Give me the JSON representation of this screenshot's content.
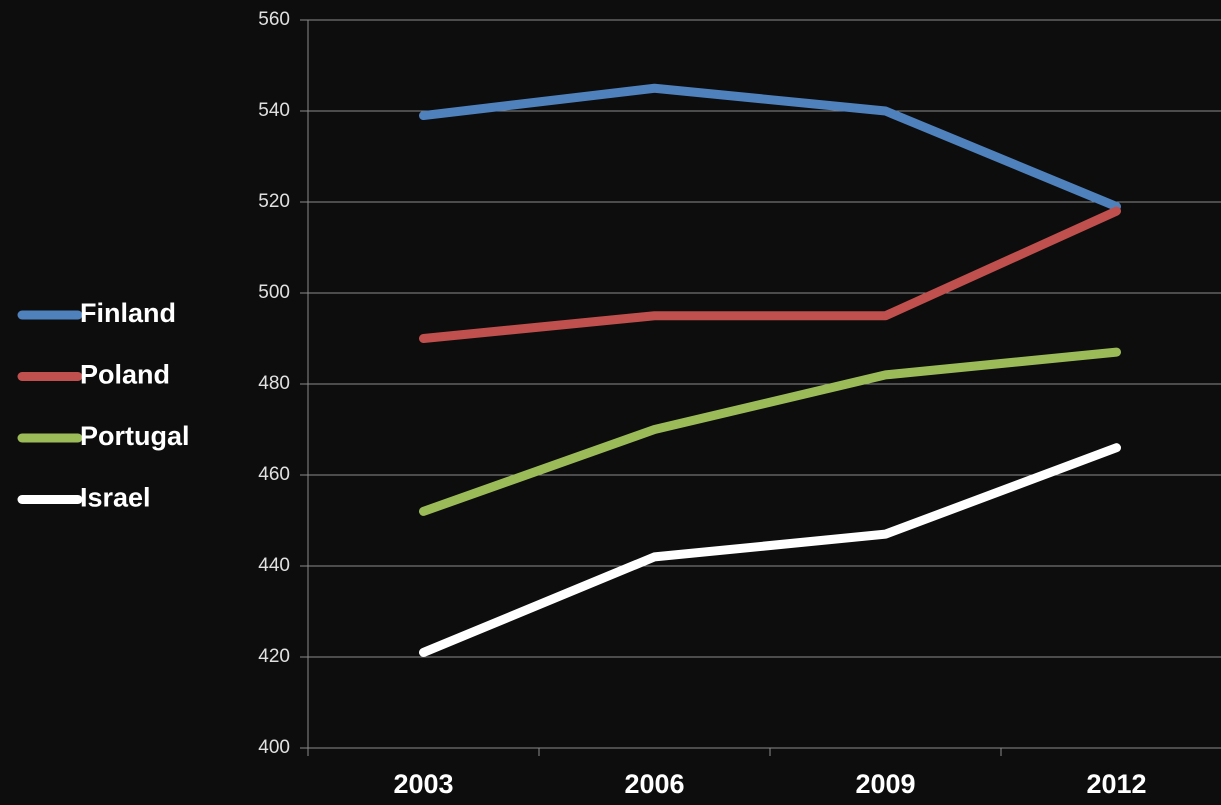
{
  "chart_data": {
    "type": "line",
    "categories": [
      "2003",
      "2006",
      "2009",
      "2012"
    ],
    "series": [
      {
        "name": "Finland",
        "color": "#4f81bd",
        "values": [
          539,
          545,
          540,
          519
        ]
      },
      {
        "name": "Poland",
        "color": "#c0504d",
        "values": [
          490,
          495,
          495,
          518
        ]
      },
      {
        "name": "Portugal",
        "color": "#9bbb59",
        "values": [
          452,
          470,
          482,
          487
        ]
      },
      {
        "name": "Israel",
        "color": "#ffffff",
        "values": [
          421,
          442,
          447,
          466
        ]
      }
    ],
    "ylim": [
      400,
      560
    ],
    "yticks": [
      400,
      420,
      440,
      460,
      480,
      500,
      520,
      540,
      560
    ],
    "grid": true,
    "legend": "left"
  }
}
